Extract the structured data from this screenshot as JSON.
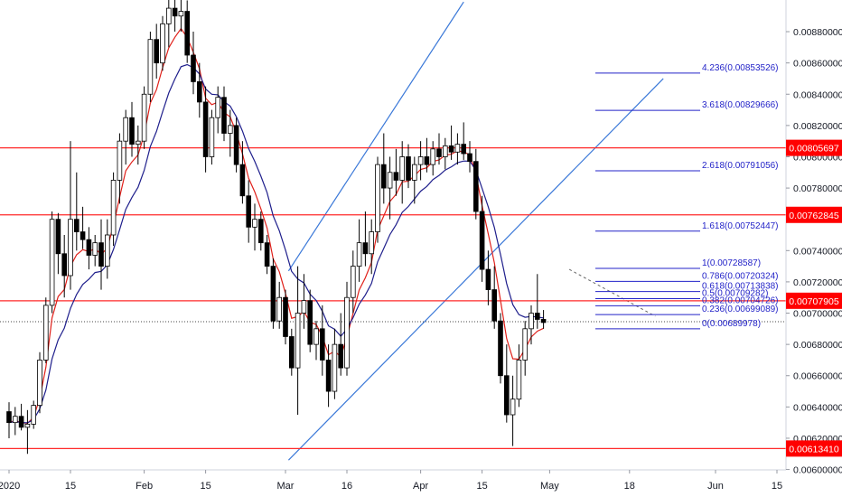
{
  "chart_data": {
    "type": "candlestick",
    "title": "",
    "xlabel": "",
    "ylabel": "",
    "ylim": [
      0.0059975,
      0.0090025
    ],
    "y_ticks": [
      "0.00600000",
      "0.00620000",
      "0.00640000",
      "0.00660000",
      "0.00680000",
      "0.00700000",
      "0.00720000",
      "0.00740000",
      "0.00760000",
      "0.00780000",
      "0.00800000",
      "0.00820000",
      "0.00840000",
      "0.00860000",
      "0.00880000"
    ],
    "x_labels": [
      {
        "text": "2020",
        "bar": 0
      },
      {
        "text": "15",
        "bar": 10
      },
      {
        "text": "Feb",
        "bar": 22
      },
      {
        "text": "15",
        "bar": 32
      },
      {
        "text": "Mar",
        "bar": 45
      },
      {
        "text": "16",
        "bar": 55
      },
      {
        "text": "Apr",
        "bar": 67
      },
      {
        "text": "15",
        "bar": 77
      },
      {
        "text": "May",
        "bar": 88
      },
      {
        "text": "18",
        "bar": 101
      },
      {
        "text": "Jun",
        "bar": 115
      },
      {
        "text": "15",
        "bar": 125
      }
    ],
    "grid": false,
    "colors": {
      "up": "#ffffff",
      "down": "#000000",
      "wick": "#000000",
      "ema_fast": "#e0201a",
      "ema_slow": "#1f1f8c",
      "level": "#ff2a2a",
      "fib": "#2323c8",
      "channel": "#3a78d8",
      "level_label_bg": "#ff0000",
      "current_price": "#444444"
    },
    "horizontal_levels": [
      {
        "value": 0.00805697,
        "label": "0.00805697"
      },
      {
        "value": 0.00762845,
        "label": "0.00762845"
      },
      {
        "value": 0.00707905,
        "label": "0.00707905"
      },
      {
        "value": 0.0061341,
        "label": "0.00613410"
      }
    ],
    "fib_levels": [
      {
        "value": 0.00853526,
        "label": "4.236(0.00853526)"
      },
      {
        "value": 0.00829666,
        "label": "3.618(0.00829666)"
      },
      {
        "value": 0.00791056,
        "label": "2.618(0.00791056)"
      },
      {
        "value": 0.00752447,
        "label": "1.618(0.00752447)"
      },
      {
        "value": 0.00728587,
        "label": "1(0.00728587)"
      },
      {
        "value": 0.00720324,
        "label": "0.786(0.00720324)"
      },
      {
        "value": 0.00713838,
        "label": "0.618(0.00713838)"
      },
      {
        "value": 0.00709282,
        "label": "0.5(0.00709282)"
      },
      {
        "value": 0.00704726,
        "label": "0.382(0.00704726)"
      },
      {
        "value": 0.00699089,
        "label": "0.236(0.00699089)"
      },
      {
        "value": 0.00689978,
        "label": "0(0.00689978)"
      }
    ],
    "current_price": 0.006945,
    "channel": {
      "lower": [
        [
          45.5,
          0.00606
        ],
        [
          106.5,
          0.0085
        ]
      ],
      "upper": [
        [
          45.5,
          0.00727
        ],
        [
          74,
          0.00899
        ]
      ]
    },
    "trend_line": [
      [
        91.2,
        0.00728
      ],
      [
        105.2,
        0.00698
      ]
    ],
    "ohlc": [
      [
        0.00637,
        0.00643,
        0.0062,
        0.0063
      ],
      [
        0.0063,
        0.0064,
        0.00622,
        0.00634
      ],
      [
        0.00634,
        0.00642,
        0.00625,
        0.00627
      ],
      [
        0.00627,
        0.00638,
        0.0061,
        0.00629
      ],
      [
        0.00629,
        0.00644,
        0.00626,
        0.00641
      ],
      [
        0.00641,
        0.00675,
        0.00636,
        0.0067
      ],
      [
        0.0067,
        0.0071,
        0.00668,
        0.00705
      ],
      [
        0.00705,
        0.00765,
        0.007,
        0.0076
      ],
      [
        0.0076,
        0.00764,
        0.00725,
        0.00738
      ],
      [
        0.00738,
        0.0075,
        0.0071,
        0.00724
      ],
      [
        0.00724,
        0.0081,
        0.00715,
        0.0076
      ],
      [
        0.0076,
        0.0079,
        0.0074,
        0.00752
      ],
      [
        0.00752,
        0.00768,
        0.00741,
        0.00747
      ],
      [
        0.00747,
        0.00755,
        0.00728,
        0.00737
      ],
      [
        0.00737,
        0.0075,
        0.0073,
        0.00745
      ],
      [
        0.00745,
        0.0076,
        0.00715,
        0.0073
      ],
      [
        0.0073,
        0.0076,
        0.00722,
        0.0075
      ],
      [
        0.0075,
        0.0079,
        0.00743,
        0.00785
      ],
      [
        0.00785,
        0.00815,
        0.0077,
        0.0081
      ],
      [
        0.0081,
        0.0083,
        0.00795,
        0.00825
      ],
      [
        0.00825,
        0.00835,
        0.008,
        0.00808
      ],
      [
        0.00808,
        0.0082,
        0.00795,
        0.0081
      ],
      [
        0.0081,
        0.00845,
        0.00805,
        0.0084
      ],
      [
        0.0084,
        0.0088,
        0.00835,
        0.00875
      ],
      [
        0.00875,
        0.00885,
        0.0085,
        0.0086
      ],
      [
        0.0086,
        0.0089,
        0.00855,
        0.00885
      ],
      [
        0.00885,
        0.00902,
        0.0087,
        0.00895
      ],
      [
        0.00895,
        0.00905,
        0.0088,
        0.0089
      ],
      [
        0.0089,
        0.0091,
        0.0088,
        0.00893
      ],
      [
        0.00893,
        0.009,
        0.0086,
        0.00865
      ],
      [
        0.00865,
        0.0088,
        0.0084,
        0.00848
      ],
      [
        0.00848,
        0.0086,
        0.00825,
        0.00835
      ],
      [
        0.00835,
        0.00845,
        0.0079,
        0.008
      ],
      [
        0.008,
        0.0083,
        0.00795,
        0.00825
      ],
      [
        0.00825,
        0.00845,
        0.00815,
        0.00838
      ],
      [
        0.00838,
        0.00845,
        0.0081,
        0.00815
      ],
      [
        0.00815,
        0.0083,
        0.008,
        0.0082
      ],
      [
        0.0082,
        0.00825,
        0.0079,
        0.00795
      ],
      [
        0.00795,
        0.0081,
        0.0077,
        0.00775
      ],
      [
        0.00775,
        0.00785,
        0.00745,
        0.00755
      ],
      [
        0.00755,
        0.0077,
        0.0074,
        0.0076
      ],
      [
        0.0076,
        0.00765,
        0.0074,
        0.00745
      ],
      [
        0.00745,
        0.0075,
        0.00725,
        0.0073
      ],
      [
        0.0073,
        0.00735,
        0.0069,
        0.00695
      ],
      [
        0.00695,
        0.0072,
        0.0069,
        0.0071
      ],
      [
        0.0071,
        0.00715,
        0.0068,
        0.00685
      ],
      [
        0.00685,
        0.0069,
        0.0066,
        0.00665
      ],
      [
        0.00665,
        0.0073,
        0.00635,
        0.007
      ],
      [
        0.007,
        0.00725,
        0.0069,
        0.00708
      ],
      [
        0.00708,
        0.00715,
        0.00675,
        0.0068
      ],
      [
        0.0068,
        0.00695,
        0.0067,
        0.0069
      ],
      [
        0.0069,
        0.00705,
        0.0066,
        0.0067
      ],
      [
        0.0067,
        0.0068,
        0.0064,
        0.0065
      ],
      [
        0.0065,
        0.0069,
        0.00645,
        0.0068
      ],
      [
        0.0068,
        0.007,
        0.0066,
        0.00665
      ],
      [
        0.00665,
        0.0072,
        0.0066,
        0.0071
      ],
      [
        0.0071,
        0.0074,
        0.007,
        0.0073
      ],
      [
        0.0073,
        0.0076,
        0.0072,
        0.00745
      ],
      [
        0.00745,
        0.00765,
        0.0073,
        0.00738
      ],
      [
        0.00738,
        0.0076,
        0.00725,
        0.00752
      ],
      [
        0.00752,
        0.008,
        0.00745,
        0.00795
      ],
      [
        0.00795,
        0.00815,
        0.0077,
        0.0078
      ],
      [
        0.0078,
        0.008,
        0.0076,
        0.0079
      ],
      [
        0.0079,
        0.00805,
        0.00775,
        0.00785
      ],
      [
        0.00785,
        0.0081,
        0.0077,
        0.008
      ],
      [
        0.008,
        0.00808,
        0.0078,
        0.00785
      ],
      [
        0.00785,
        0.008,
        0.0077,
        0.00795
      ],
      [
        0.00795,
        0.0081,
        0.00785,
        0.008
      ],
      [
        0.008,
        0.00812,
        0.0079,
        0.00795
      ],
      [
        0.00795,
        0.0081,
        0.00788,
        0.00805
      ],
      [
        0.00805,
        0.00815,
        0.00795,
        0.008
      ],
      [
        0.008,
        0.00812,
        0.00792,
        0.00807
      ],
      [
        0.00807,
        0.0082,
        0.00798,
        0.00803
      ],
      [
        0.00803,
        0.00815,
        0.00795,
        0.00808
      ],
      [
        0.00808,
        0.00822,
        0.00798,
        0.00802
      ],
      [
        0.00802,
        0.0081,
        0.0079,
        0.00797
      ],
      [
        0.00797,
        0.00805,
        0.0076,
        0.00765
      ],
      [
        0.00765,
        0.00775,
        0.0072,
        0.00728
      ],
      [
        0.00728,
        0.0074,
        0.00705,
        0.00715
      ],
      [
        0.00715,
        0.0073,
        0.0069,
        0.00695
      ],
      [
        0.00695,
        0.007,
        0.00655,
        0.0066
      ],
      [
        0.0066,
        0.0068,
        0.0063,
        0.00635
      ],
      [
        0.00635,
        0.0066,
        0.00615,
        0.00645
      ],
      [
        0.00645,
        0.0068,
        0.0064,
        0.0067
      ],
      [
        0.0067,
        0.00695,
        0.0066,
        0.0069
      ],
      [
        0.0069,
        0.00705,
        0.0068,
        0.007
      ],
      [
        0.007,
        0.00725,
        0.0069,
        0.00696
      ],
      [
        0.00696,
        0.00702,
        0.0069,
        0.00694
      ]
    ]
  }
}
